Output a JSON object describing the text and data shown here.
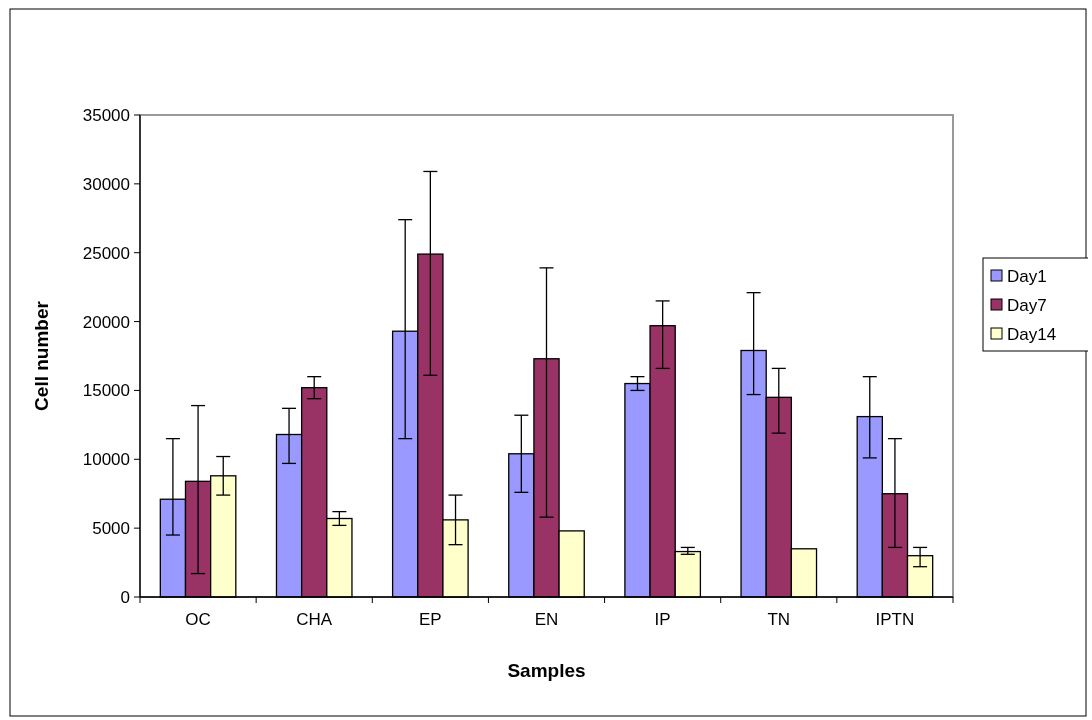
{
  "chart_data": {
    "type": "bar",
    "xlabel": "Samples",
    "ylabel": "Cell number",
    "categories": [
      "OC",
      "CHA",
      "EP",
      "EN",
      "IP",
      "TN",
      "IPTN"
    ],
    "series": [
      {
        "name": "Day1",
        "color": "#9999ff",
        "values": [
          7100,
          11800,
          19300,
          10400,
          15500,
          17900,
          13100
        ],
        "errors": [
          [
            4500,
            11500
          ],
          [
            9700,
            13700
          ],
          [
            11500,
            27400
          ],
          [
            7600,
            13200
          ],
          [
            15000,
            16000
          ],
          [
            14700,
            22100
          ],
          [
            10100,
            16000
          ]
        ]
      },
      {
        "name": "Day7",
        "color": "#993366",
        "values": [
          8400,
          15200,
          24900,
          17300,
          19700,
          14500,
          7500
        ],
        "errors": [
          [
            1700,
            13900
          ],
          [
            14400,
            16000
          ],
          [
            16100,
            30900
          ],
          [
            5800,
            23900
          ],
          [
            16600,
            21500
          ],
          [
            11900,
            16600
          ],
          [
            3600,
            11500
          ]
        ]
      },
      {
        "name": "Day14",
        "color": "#ffffcc",
        "values": [
          8800,
          5700,
          5600,
          4800,
          3300,
          3500,
          3000
        ],
        "errors": [
          [
            7400,
            10200
          ],
          [
            5200,
            6200
          ],
          [
            3800,
            7400
          ],
          null,
          [
            3100,
            3600
          ],
          null,
          [
            2200,
            3600
          ]
        ]
      }
    ],
    "ylim": [
      0,
      35000
    ],
    "yticks": [
      0,
      5000,
      10000,
      15000,
      20000,
      25000,
      30000,
      35000
    ],
    "grid": false,
    "legend": "right"
  }
}
